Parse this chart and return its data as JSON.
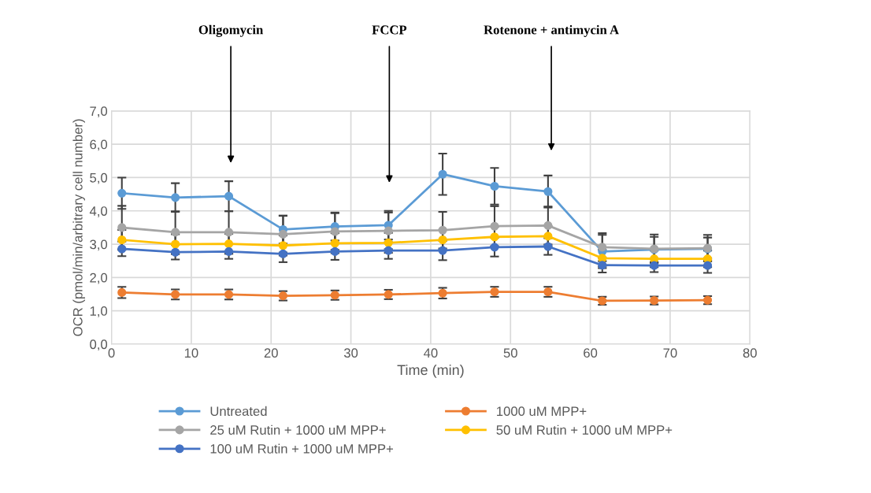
{
  "chart_data": {
    "type": "line",
    "xlabel": "Time (min)",
    "ylabel": "OCR (pmol/min/arbitrary cell number)",
    "x": [
      1.3,
      8,
      14.7,
      21.5,
      28,
      34.7,
      41.5,
      48,
      54.7,
      61.5,
      68,
      74.7
    ],
    "series": [
      {
        "name": "Untreated",
        "color": "#5b9bd5",
        "values": [
          4.53,
          4.4,
          4.44,
          3.44,
          3.53,
          3.57,
          5.1,
          4.74,
          4.58,
          2.78,
          2.84,
          2.86
        ],
        "errors": [
          0.47,
          0.43,
          0.45,
          0.42,
          0.42,
          0.43,
          0.62,
          0.55,
          0.48,
          0.5,
          0.38,
          0.34
        ]
      },
      {
        "name": "1000 uM MPP+",
        "color": "#ed7d31",
        "values": [
          1.55,
          1.49,
          1.49,
          1.45,
          1.47,
          1.49,
          1.53,
          1.57,
          1.57,
          1.3,
          1.31,
          1.32
        ],
        "errors": [
          0.17,
          0.15,
          0.15,
          0.14,
          0.14,
          0.14,
          0.16,
          0.15,
          0.15,
          0.12,
          0.12,
          0.12
        ]
      },
      {
        "name": "25 uM Rutin + 1000 uM MPP+",
        "color": "#a5a5a5",
        "values": [
          3.5,
          3.36,
          3.36,
          3.3,
          3.38,
          3.4,
          3.42,
          3.54,
          3.56,
          2.91,
          2.86,
          2.88
        ],
        "errors": [
          0.65,
          0.63,
          0.63,
          0.55,
          0.55,
          0.55,
          0.55,
          0.6,
          0.57,
          0.42,
          0.43,
          0.4
        ]
      },
      {
        "name": "50 uM Rutin + 1000 uM MPP+",
        "color": "#ffc000",
        "values": [
          3.13,
          3.0,
          3.01,
          2.96,
          3.03,
          3.04,
          3.13,
          3.22,
          3.24,
          2.58,
          2.56,
          2.56
        ],
        "errors": [
          0.3,
          0.3,
          0.3,
          0.3,
          0.3,
          0.3,
          0.3,
          0.3,
          0.3,
          0.25,
          0.25,
          0.25
        ]
      },
      {
        "name": "100 uM Rutin + 1000 uM MPP+",
        "color": "#4472c4",
        "values": [
          2.86,
          2.76,
          2.78,
          2.71,
          2.78,
          2.81,
          2.81,
          2.91,
          2.93,
          2.37,
          2.36,
          2.36
        ],
        "errors": [
          0.22,
          0.22,
          0.22,
          0.25,
          0.25,
          0.25,
          0.29,
          0.28,
          0.25,
          0.22,
          0.2,
          0.22
        ]
      }
    ],
    "xlim": [
      0,
      80
    ],
    "xticks": [
      0,
      10,
      20,
      30,
      40,
      50,
      60,
      70,
      80
    ],
    "ylim": [
      0,
      7
    ],
    "yticks": [
      {
        "value": 0,
        "label": "0,0"
      },
      {
        "value": 1,
        "label": "1,0"
      },
      {
        "value": 2,
        "label": "2,0"
      },
      {
        "value": 3,
        "label": "3,0"
      },
      {
        "value": 4,
        "label": "4,0"
      },
      {
        "value": 5,
        "label": "5,0"
      },
      {
        "value": 6,
        "label": "6,0"
      },
      {
        "value": 7,
        "label": "7,0"
      }
    ],
    "annotations": [
      "Oligomycin",
      "FCCP",
      "Rotenone + antimycin A"
    ],
    "grid": true,
    "legend": "bottom",
    "marker": "circle",
    "line_style": "solid"
  }
}
